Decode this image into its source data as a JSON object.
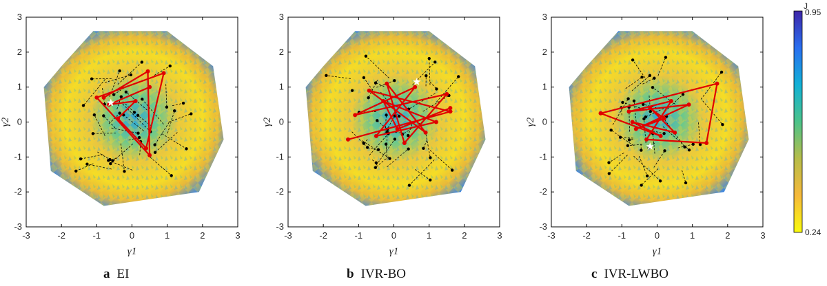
{
  "chart_data": [
    {
      "type": "scatter",
      "panel_letter": "a",
      "title": "EI",
      "xlabel": "γ1",
      "ylabel": "γ2",
      "xlim": [
        -3,
        3
      ],
      "ylim": [
        -3,
        3
      ],
      "xticks": [
        "-3",
        "-2",
        "-1",
        "0",
        "1",
        "2",
        "3"
      ],
      "yticks": [
        "-3",
        "-2",
        "-1",
        "0",
        "1",
        "2",
        "3"
      ],
      "best": [
        -0.6,
        0.55
      ],
      "red_path": [
        [
          -0.8,
          0.7
        ],
        [
          0.45,
          1.45
        ],
        [
          0.5,
          -0.95
        ],
        [
          -1.0,
          0.7
        ],
        [
          0.9,
          1.4
        ],
        [
          0.4,
          -0.75
        ],
        [
          -0.4,
          0.1
        ],
        [
          0.1,
          0.6
        ],
        [
          -0.65,
          0.5
        ],
        [
          0.5,
          1.0
        ]
      ]
    },
    {
      "type": "scatter",
      "panel_letter": "b",
      "title": "IVR-BO",
      "xlabel": "γ1",
      "ylabel": "γ2",
      "xlim": [
        -3,
        3
      ],
      "ylim": [
        -3,
        3
      ],
      "xticks": [
        "-3",
        "-2",
        "-1",
        "0",
        "1",
        "2",
        "3"
      ],
      "yticks": [
        "-3",
        "-2",
        "-1",
        "0",
        "1",
        "2",
        "3"
      ],
      "best": [
        0.65,
        1.15
      ],
      "red_path": [
        [
          -1.3,
          -0.5
        ],
        [
          1.6,
          0.3
        ],
        [
          -0.7,
          0.9
        ],
        [
          0.9,
          -0.3
        ],
        [
          -0.2,
          1.1
        ],
        [
          0.3,
          -0.6
        ],
        [
          1.5,
          0.8
        ],
        [
          -1.1,
          0.2
        ],
        [
          0.6,
          1.0
        ],
        [
          -0.5,
          -0.4
        ],
        [
          1.2,
          0.0
        ],
        [
          -0.3,
          0.6
        ],
        [
          0.1,
          -0.2
        ],
        [
          1.6,
          0.4
        ]
      ]
    },
    {
      "type": "scatter",
      "panel_letter": "c",
      "title": "IVR-LWBO",
      "xlabel": "γ1",
      "ylabel": "γ2",
      "xlim": [
        -3,
        3
      ],
      "ylim": [
        -3,
        3
      ],
      "xticks": [
        "-3",
        "-2",
        "-1",
        "0",
        "1",
        "2",
        "3"
      ],
      "yticks": [
        "-3",
        "-2",
        "-1",
        "0",
        "1",
        "2",
        "3"
      ],
      "best": [
        -0.2,
        -0.7
      ],
      "red_path": [
        [
          -1.6,
          0.25
        ],
        [
          1.7,
          1.1
        ],
        [
          1.4,
          -0.6
        ],
        [
          -0.3,
          -0.5
        ],
        [
          0.4,
          0.6
        ],
        [
          -0.8,
          0.3
        ],
        [
          0.9,
          0.5
        ],
        [
          -0.6,
          -0.2
        ],
        [
          0.2,
          0.1
        ],
        [
          -0.2,
          0.4
        ],
        [
          0.5,
          -0.3
        ],
        [
          -0.7,
          0.0
        ],
        [
          0.1,
          -0.4
        ],
        [
          -1.6,
          0.25
        ]
      ]
    }
  ],
  "colorbar": {
    "title": "J",
    "max_label": "0.95",
    "min_label": "0.24",
    "colors": [
      "#3e26a8",
      "#2a6ff0",
      "#12b1d6",
      "#4cc38a",
      "#b7bd4a",
      "#f6b93b",
      "#f9fb0e"
    ]
  },
  "captions": [
    {
      "letter": "a",
      "text": "EI"
    },
    {
      "letter": "b",
      "text": "IVR-BO"
    },
    {
      "letter": "c",
      "text": "IVR-LWBO"
    }
  ]
}
